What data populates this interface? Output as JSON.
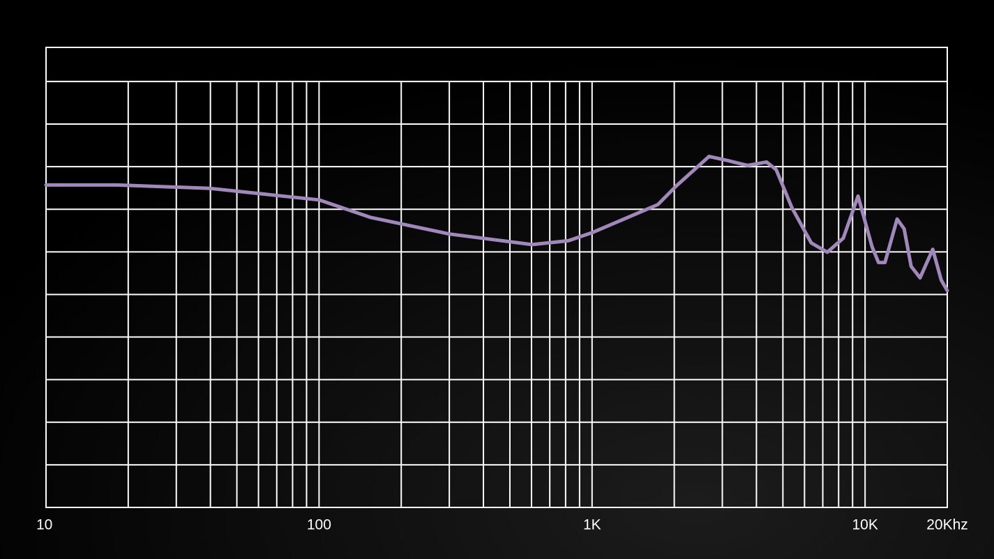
{
  "chart_data": {
    "type": "line",
    "x": [
      10,
      18.2,
      40,
      100,
      154,
      300,
      603,
      819,
      1000,
      1742,
      2037,
      2684,
      3155,
      3709,
      4357,
      4725,
      5403,
      6350,
      7271,
      8320,
      9425,
      10610,
      11200,
      11830,
      13100,
      13900,
      14750,
      15900,
      17700,
      19000,
      20000
    ],
    "series": [
      {
        "color": "#a088bb",
        "values": [
          7.57,
          7.57,
          7.49,
          7.22,
          6.81,
          6.42,
          6.17,
          6.26,
          6.45,
          7.11,
          7.55,
          8.24,
          8.14,
          8.03,
          8.11,
          7.93,
          7.03,
          6.21,
          5.99,
          6.32,
          7.31,
          6.12,
          5.75,
          5.75,
          6.77,
          6.54,
          5.66,
          5.39,
          6.06,
          5.34,
          5.09
        ]
      }
    ],
    "xscale": "log",
    "xlim": [
      10,
      20000
    ],
    "xticks": [
      10,
      100,
      {
        "value": 1000,
        "label": "1K"
      },
      {
        "value": 10000,
        "label": "10K"
      },
      {
        "value": 20000,
        "label": "20Khz"
      }
    ],
    "xgrid": [
      20,
      30,
      40,
      50,
      60,
      70,
      80,
      90,
      200,
      300,
      400,
      500,
      600,
      700,
      800,
      900,
      2000,
      3000,
      4000,
      5000,
      6000,
      7000,
      8000,
      9000
    ],
    "ylim": [
      0,
      10.8
    ],
    "yticks": [
      0,
      1,
      2,
      3,
      4,
      5,
      6,
      7,
      8,
      9,
      10
    ],
    "grid": true
  }
}
